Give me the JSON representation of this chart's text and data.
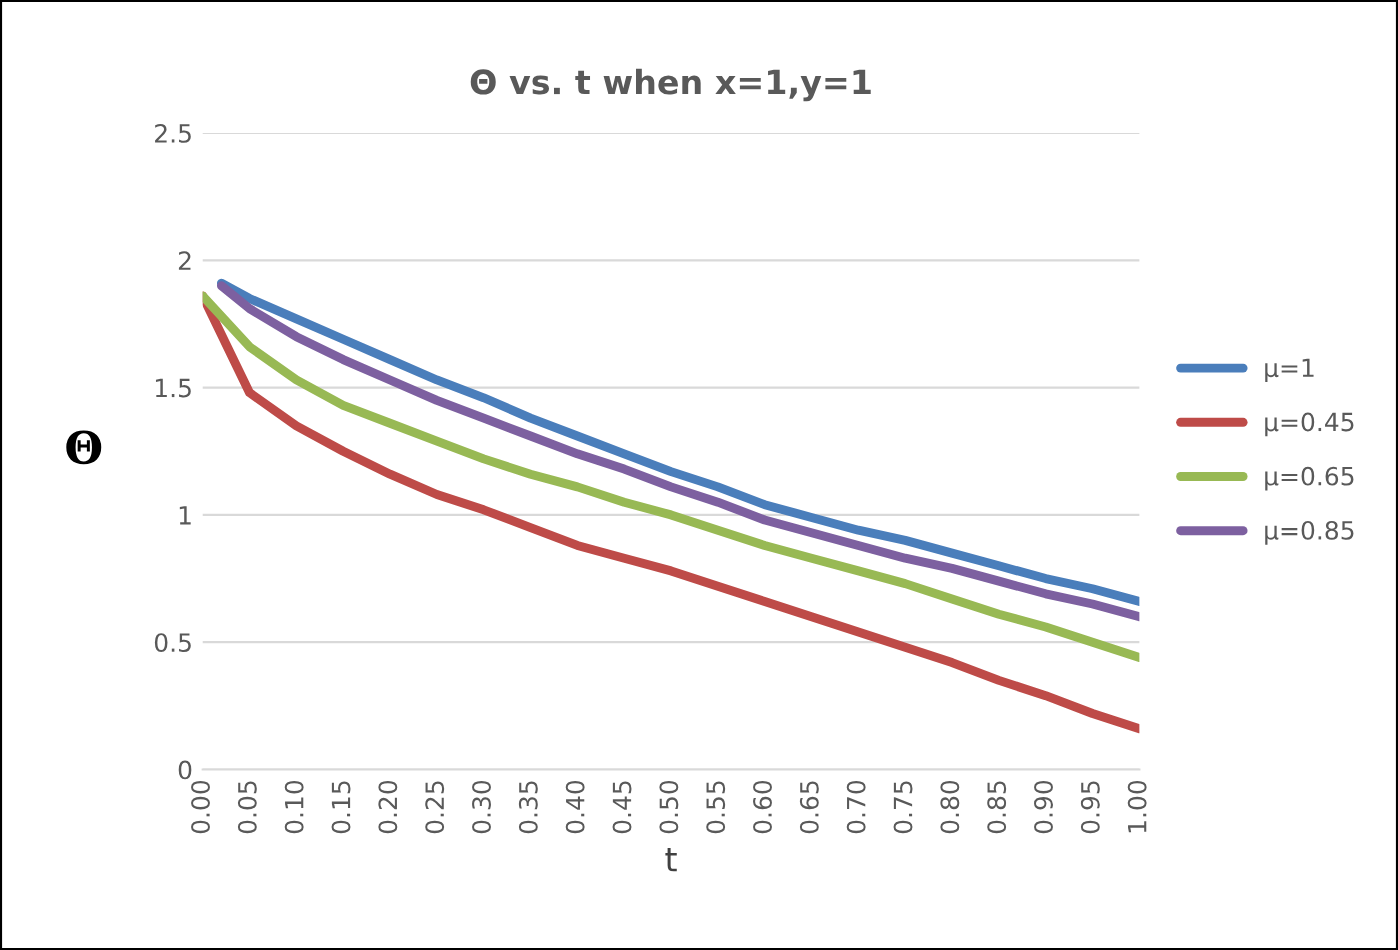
{
  "chart_data": {
    "type": "line",
    "title": "Θ vs. t when x=1,y=1",
    "xlabel": "t",
    "ylabel": "Θ",
    "xlim": [
      0,
      1
    ],
    "xticks": [
      {
        "value": 0,
        "label": "0.00"
      },
      {
        "value": 0.05,
        "label": "0.05"
      },
      {
        "value": 0.1,
        "label": "0.10"
      },
      {
        "value": 0.15,
        "label": "0.15"
      },
      {
        "value": 0.2,
        "label": "0.20"
      },
      {
        "value": 0.25,
        "label": "0.25"
      },
      {
        "value": 0.3,
        "label": "0.30"
      },
      {
        "value": 0.35,
        "label": "0.35"
      },
      {
        "value": 0.4,
        "label": "0.40"
      },
      {
        "value": 0.45,
        "label": "0.45"
      },
      {
        "value": 0.5,
        "label": "0.50"
      },
      {
        "value": 0.55,
        "label": "0.55"
      },
      {
        "value": 0.6,
        "label": "0.60"
      },
      {
        "value": 0.65,
        "label": "0.65"
      },
      {
        "value": 0.7,
        "label": "0.70"
      },
      {
        "value": 0.75,
        "label": "0.75"
      },
      {
        "value": 0.8,
        "label": "0.80"
      },
      {
        "value": 0.85,
        "label": "0.85"
      },
      {
        "value": 0.9,
        "label": "0.90"
      },
      {
        "value": 0.95,
        "label": "0.95"
      },
      {
        "value": 1,
        "label": "1.00"
      }
    ],
    "ylim": [
      0,
      2.5
    ],
    "yticks": [
      0,
      0.5,
      1,
      1.5,
      2,
      2.5
    ],
    "grid": "y",
    "legend": "right",
    "marker": "none",
    "line_style": "solid",
    "series": [
      {
        "name": "μ=1",
        "color": "#4a7ebb",
        "x": [
          0.02,
          0.05,
          0.1,
          0.15,
          0.2,
          0.25,
          0.3,
          0.35,
          0.4,
          0.45,
          0.5,
          0.55,
          0.6,
          0.65,
          0.7,
          0.75,
          0.8,
          0.85,
          0.9,
          0.95,
          1
        ],
        "values": [
          1.91,
          1.85,
          1.77,
          1.69,
          1.61,
          1.53,
          1.46,
          1.38,
          1.31,
          1.24,
          1.17,
          1.11,
          1.04,
          0.99,
          0.94,
          0.9,
          0.85,
          0.8,
          0.75,
          0.71,
          0.66
        ]
      },
      {
        "name": "μ=0.45",
        "color": "#be4b48",
        "x": [
          0,
          0.05,
          0.1,
          0.15,
          0.2,
          0.25,
          0.3,
          0.35,
          0.4,
          0.45,
          0.5,
          0.55,
          0.6,
          0.65,
          0.7,
          0.75,
          0.8,
          0.85,
          0.9,
          0.95,
          1
        ],
        "values": [
          1.86,
          1.48,
          1.35,
          1.25,
          1.16,
          1.08,
          1.02,
          0.95,
          0.88,
          0.83,
          0.78,
          0.72,
          0.66,
          0.6,
          0.54,
          0.48,
          0.42,
          0.35,
          0.29,
          0.22,
          0.16
        ]
      },
      {
        "name": "μ=0.65",
        "color": "#98b954",
        "x": [
          0,
          0.05,
          0.1,
          0.15,
          0.2,
          0.25,
          0.3,
          0.35,
          0.4,
          0.45,
          0.5,
          0.55,
          0.6,
          0.65,
          0.7,
          0.75,
          0.8,
          0.85,
          0.9,
          0.95,
          1
        ],
        "values": [
          1.86,
          1.66,
          1.53,
          1.43,
          1.36,
          1.29,
          1.22,
          1.16,
          1.11,
          1.05,
          1.0,
          0.94,
          0.88,
          0.83,
          0.78,
          0.73,
          0.67,
          0.61,
          0.56,
          0.5,
          0.44
        ]
      },
      {
        "name": "μ=0.85",
        "color": "#7d60a0",
        "x": [
          0.02,
          0.05,
          0.1,
          0.15,
          0.2,
          0.25,
          0.3,
          0.35,
          0.4,
          0.45,
          0.5,
          0.55,
          0.6,
          0.65,
          0.7,
          0.75,
          0.8,
          0.85,
          0.9,
          0.95,
          1
        ],
        "values": [
          1.9,
          1.81,
          1.7,
          1.61,
          1.53,
          1.45,
          1.38,
          1.31,
          1.24,
          1.18,
          1.11,
          1.05,
          0.98,
          0.93,
          0.88,
          0.83,
          0.79,
          0.74,
          0.69,
          0.65,
          0.6
        ]
      }
    ]
  }
}
